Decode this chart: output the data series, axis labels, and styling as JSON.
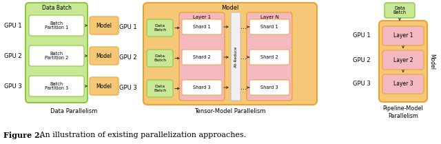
{
  "fig_width": 6.4,
  "fig_height": 2.09,
  "dpi": 100,
  "bg_color": "#ffffff",
  "colors": {
    "green_box": "#8dc63f",
    "green_fill": "#c8e896",
    "orange_box": "#f0a030",
    "orange_fill": "#f5c878",
    "pink_fill": "#f4b8c1",
    "white_fill": "#ffffff",
    "allreduce_fill": "#f0f0f0",
    "allreduce_border": "#bbbbbb",
    "text_dark": "#000000"
  },
  "caption_bold": "Figure 2.",
  "caption_rest": " An illustration of existing parallelization approaches.",
  "section_labels": {
    "data_par": "Data Parallelism",
    "tensor_par": "Tensor-Model Parallelism",
    "pipeline_par": "Pipeline-Model\nParallelism"
  },
  "gpu_labels": [
    "GPU 1",
    "GPU 2",
    "GPU 3"
  ],
  "bp_labels": [
    "Batch\nPartition 1",
    "Batch\nPartition 2",
    "Batch\nPartition 3"
  ],
  "shard_labels": [
    "Shard 1",
    "Shard 2",
    "Shard 3"
  ],
  "layer_labels": [
    "Layer 1",
    "Layer 2",
    "Layer 3"
  ]
}
